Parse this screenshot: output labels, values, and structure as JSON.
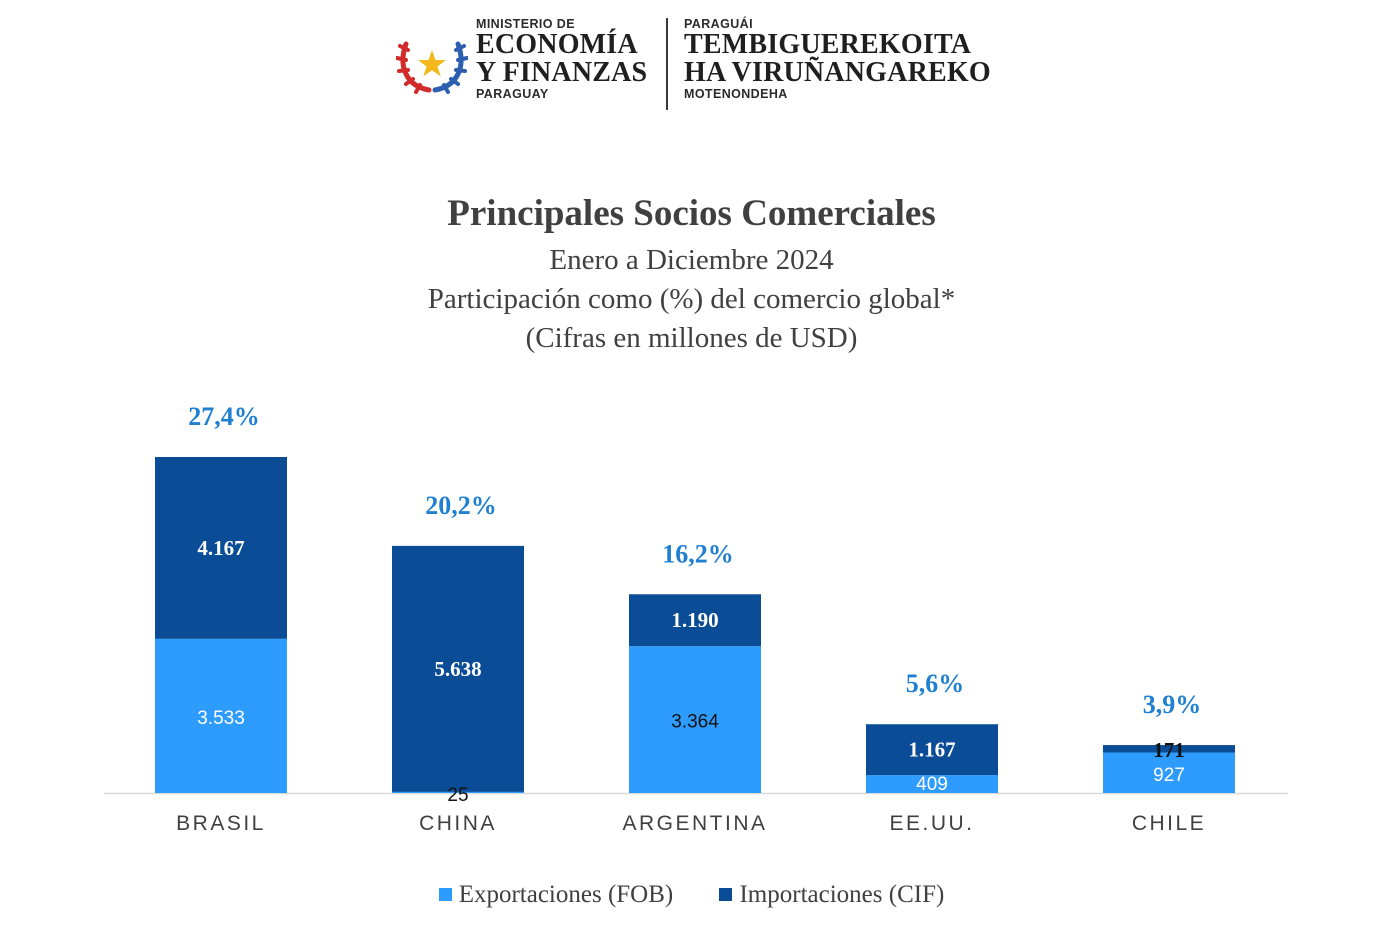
{
  "colors": {
    "exports": "#2e9bff",
    "imports": "#0a4d96",
    "share_label": "#1f7fd1",
    "axis_text": "#404040"
  },
  "header": {
    "left": {
      "top_line": "MINISTERIO DE",
      "line1": "ECONOMÍA",
      "line2": "Y FINANZAS",
      "bottom_line": "PARAGUAY"
    },
    "right": {
      "top_line": "PARAGUÁI",
      "line1": "TEMBIGUEREKOITA",
      "line2": "HA VIRUÑANGAREKO",
      "bottom_line": "MOTENONDEHA"
    }
  },
  "chart_data": {
    "type": "bar",
    "stacked": true,
    "title": "Principales Socios Comerciales",
    "subtitle": "Enero a Diciembre 2024",
    "subtitle_2": "Participación como (%) del comercio global*",
    "subtitle_3": "(Cifras en millones de USD)",
    "categories": [
      "BRASIL",
      "CHINA",
      "ARGENTINA",
      "EE.UU.",
      "CHILE"
    ],
    "series": [
      {
        "name": "Exportaciones (FOB)",
        "values": [
          3533,
          25,
          3364,
          409,
          927
        ],
        "labels": [
          "3.533",
          "25",
          "3.364",
          "409",
          "927"
        ]
      },
      {
        "name": "Importaciones (CIF)",
        "values": [
          4167,
          5638,
          1190,
          1167,
          171
        ],
        "labels": [
          "4.167",
          "5.638",
          "1.190",
          "1.167",
          "171"
        ]
      }
    ],
    "share_labels": [
      "27,4%",
      "20,2%",
      "16,2%",
      "5,6%",
      "3,9%"
    ],
    "ylim": [
      0,
      7700
    ],
    "grid": false,
    "legend_position": "bottom"
  }
}
